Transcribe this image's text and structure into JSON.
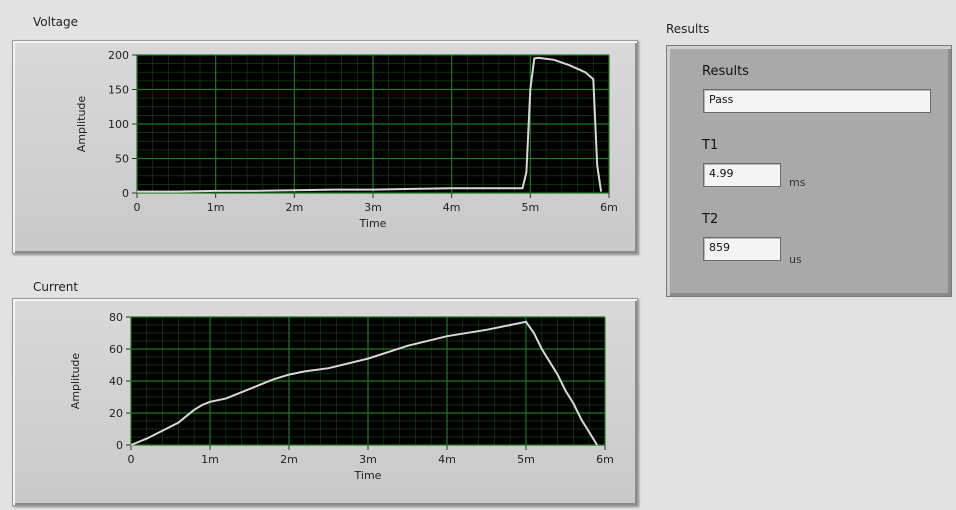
{
  "voltage_graph": {
    "caption": "Voltage"
  },
  "current_graph": {
    "caption": "Current"
  },
  "results": {
    "caption": "Results",
    "result_label": "Results",
    "result_value": "Pass",
    "t1_label": "T1",
    "t1_value": "4.99",
    "t1_unit": "ms",
    "t2_label": "T2",
    "t2_value": "859",
    "t2_unit": "us"
  },
  "colors": {
    "plot_bg": "#000000",
    "grid": "#1e7a1e",
    "trace": "#d8d8d8"
  },
  "chart_data": [
    {
      "type": "line",
      "xlabel": "Time",
      "ylabel": "Amplitude",
      "xlim": [
        0,
        0.006
      ],
      "ylim": [
        0,
        200
      ],
      "xticks": [
        "0",
        "1m",
        "2m",
        "3m",
        "4m",
        "5m",
        "6m"
      ],
      "yticks": [
        "0",
        "50",
        "100",
        "150",
        "200"
      ],
      "grid": true,
      "series": [
        {
          "x": [
            0,
            0.0005,
            0.001,
            0.0015,
            0.002,
            0.0025,
            0.003,
            0.0035,
            0.004,
            0.0045,
            0.0049,
            0.00495,
            0.005,
            0.00505,
            0.0051,
            0.0053,
            0.0055,
            0.0057,
            0.0058,
            0.00585,
            0.0059
          ],
          "y": [
            2,
            2,
            3,
            3,
            4,
            5,
            5,
            6,
            7,
            7,
            7,
            30,
            150,
            195,
            196,
            193,
            185,
            175,
            165,
            40,
            2
          ]
        }
      ]
    },
    {
      "type": "line",
      "xlabel": "Time",
      "ylabel": "Amplitude",
      "xlim": [
        0,
        0.006
      ],
      "ylim": [
        0,
        80
      ],
      "xticks": [
        "0",
        "1m",
        "2m",
        "3m",
        "4m",
        "5m",
        "6m"
      ],
      "yticks": [
        "0",
        "20",
        "40",
        "60",
        "80"
      ],
      "grid": true,
      "series": [
        {
          "x": [
            0,
            0.0002,
            0.0004,
            0.0006,
            0.0007,
            0.0008,
            0.0009,
            0.001,
            0.0012,
            0.0014,
            0.0016,
            0.0018,
            0.002,
            0.0022,
            0.0025,
            0.003,
            0.0035,
            0.004,
            0.0045,
            0.0048,
            0.005,
            0.0051,
            0.0052,
            0.0053,
            0.0054,
            0.0055,
            0.0056,
            0.0057,
            0.0058,
            0.0059
          ],
          "y": [
            0,
            4,
            9,
            14,
            18,
            22,
            25,
            27,
            29,
            33,
            37,
            41,
            44,
            46,
            48,
            54,
            62,
            68,
            72,
            75,
            77,
            70,
            60,
            52,
            44,
            34,
            26,
            16,
            8,
            0
          ]
        }
      ]
    }
  ]
}
